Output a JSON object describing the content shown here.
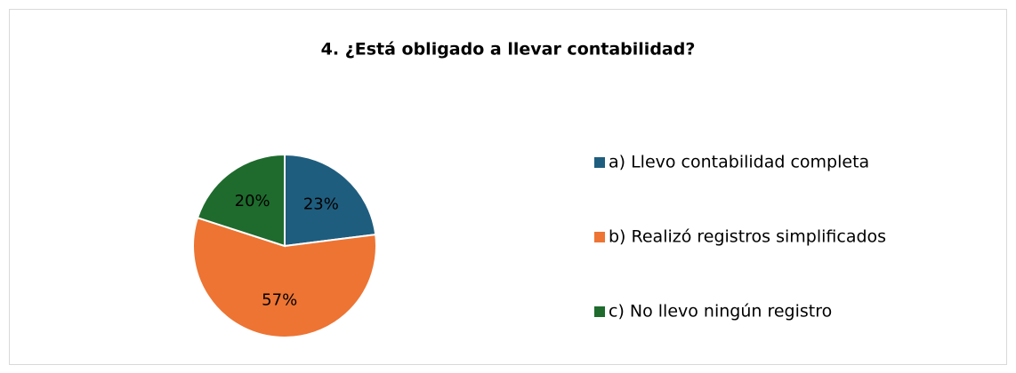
{
  "chart_data": {
    "type": "pie",
    "title": "4.  ¿Está obligado a llevar contabilidad?",
    "categories": [
      "a)  Llevo contabilidad completa",
      "b)   Realizó registros simplificados",
      "c)  No llevo ningún registro"
    ],
    "values": [
      23,
      57,
      20
    ],
    "value_labels": [
      "23%",
      "57%",
      "20%"
    ],
    "colors": [
      "#1f5d7e",
      "#ed7433",
      "#1e6b2d"
    ]
  }
}
